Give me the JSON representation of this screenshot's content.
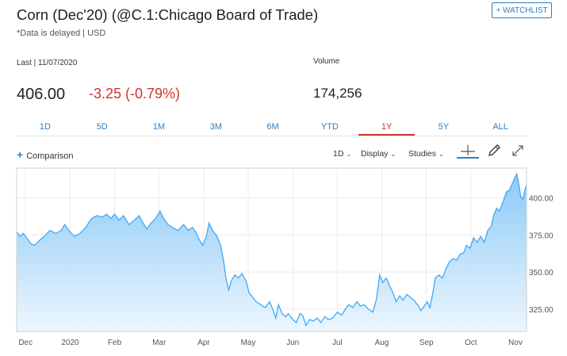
{
  "header": {
    "title": "Corn (Dec'20) (@C.1:Chicago Board of Trade)",
    "subtitle": "*Data is delayed | USD",
    "watchlist_label": "+ WATCHLIST"
  },
  "quote": {
    "last_label": "Last | 11/07/2020",
    "last_price": "406.00",
    "change": "-3.25 (-0.79%)",
    "volume_label": "Volume",
    "volume_value": "174,256",
    "change_color": "#d0342c"
  },
  "range_tabs": [
    {
      "label": "1D",
      "active": false
    },
    {
      "label": "5D",
      "active": false
    },
    {
      "label": "1M",
      "active": false
    },
    {
      "label": "3M",
      "active": false
    },
    {
      "label": "6M",
      "active": false
    },
    {
      "label": "YTD",
      "active": false
    },
    {
      "label": "1Y",
      "active": true
    },
    {
      "label": "5Y",
      "active": false
    },
    {
      "label": "ALL",
      "active": false
    }
  ],
  "toolbar": {
    "comparison_label": "Comparison",
    "interval_label": "1D",
    "display_label": "Display",
    "studies_label": "Studies",
    "crosshair_icon": "crosshair-icon",
    "draw_icon": "pencil-icon",
    "expand_icon": "expand-icon"
  },
  "colors": {
    "accent": "#2f7fc1",
    "line": "#3fa9f5",
    "area_top": "#80c4f7",
    "area_bottom": "#eaf5fe",
    "negative": "#d0342c"
  },
  "chart_data": {
    "type": "area",
    "x_ticks": [
      "Dec",
      "2020",
      "Feb",
      "Mar",
      "Apr",
      "May",
      "Jun",
      "Jul",
      "Aug",
      "Sep",
      "Oct",
      "Nov"
    ],
    "y_ticks": [
      325.0,
      350.0,
      375.0,
      400.0
    ],
    "y_tick_labels": [
      "325.00",
      "350.00",
      "375.00",
      "400.00"
    ],
    "ylim": [
      310,
      420
    ],
    "x_range_months": [
      -0.2,
      11.25
    ],
    "grid": true,
    "points": [
      [
        -0.2,
        377
      ],
      [
        -0.12,
        374
      ],
      [
        -0.05,
        376
      ],
      [
        0.05,
        372
      ],
      [
        0.12,
        369
      ],
      [
        0.2,
        368
      ],
      [
        0.3,
        371
      ],
      [
        0.42,
        374
      ],
      [
        0.55,
        378
      ],
      [
        0.68,
        376
      ],
      [
        0.8,
        378
      ],
      [
        0.88,
        382
      ],
      [
        1.0,
        377
      ],
      [
        1.1,
        374
      ],
      [
        1.22,
        376
      ],
      [
        1.35,
        380
      ],
      [
        1.48,
        386
      ],
      [
        1.6,
        388
      ],
      [
        1.72,
        387
      ],
      [
        1.82,
        389
      ],
      [
        1.92,
        386
      ],
      [
        2.0,
        389
      ],
      [
        2.1,
        385
      ],
      [
        2.2,
        388
      ],
      [
        2.32,
        382
      ],
      [
        2.45,
        385
      ],
      [
        2.55,
        388
      ],
      [
        2.62,
        384
      ],
      [
        2.72,
        379
      ],
      [
        2.82,
        383
      ],
      [
        2.92,
        386
      ],
      [
        3.02,
        391
      ],
      [
        3.1,
        386
      ],
      [
        3.2,
        382
      ],
      [
        3.3,
        380
      ],
      [
        3.42,
        378
      ],
      [
        3.55,
        382
      ],
      [
        3.65,
        378
      ],
      [
        3.75,
        380
      ],
      [
        3.82,
        377
      ],
      [
        3.9,
        372
      ],
      [
        3.98,
        368
      ],
      [
        4.06,
        374
      ],
      [
        4.12,
        383
      ],
      [
        4.2,
        378
      ],
      [
        4.3,
        374
      ],
      [
        4.38,
        368
      ],
      [
        4.45,
        357
      ],
      [
        4.5,
        346
      ],
      [
        4.56,
        338
      ],
      [
        4.62,
        344
      ],
      [
        4.7,
        348
      ],
      [
        4.78,
        346
      ],
      [
        4.86,
        349
      ],
      [
        4.95,
        344
      ],
      [
        5.02,
        336
      ],
      [
        5.1,
        333
      ],
      [
        5.18,
        330
      ],
      [
        5.28,
        328
      ],
      [
        5.38,
        326
      ],
      [
        5.48,
        330
      ],
      [
        5.55,
        325
      ],
      [
        5.62,
        319
      ],
      [
        5.68,
        328
      ],
      [
        5.76,
        322
      ],
      [
        5.84,
        320
      ],
      [
        5.9,
        322
      ],
      [
        6.0,
        318
      ],
      [
        6.08,
        316
      ],
      [
        6.16,
        322
      ],
      [
        6.22,
        321
      ],
      [
        6.3,
        314
      ],
      [
        6.38,
        318
      ],
      [
        6.46,
        317
      ],
      [
        6.55,
        319
      ],
      [
        6.63,
        316
      ],
      [
        6.72,
        320
      ],
      [
        6.8,
        318
      ],
      [
        6.9,
        319
      ],
      [
        7.0,
        323
      ],
      [
        7.1,
        321
      ],
      [
        7.18,
        325
      ],
      [
        7.26,
        328
      ],
      [
        7.35,
        326
      ],
      [
        7.44,
        330
      ],
      [
        7.52,
        327
      ],
      [
        7.6,
        328
      ],
      [
        7.7,
        325
      ],
      [
        7.8,
        323
      ],
      [
        7.88,
        332
      ],
      [
        7.95,
        348
      ],
      [
        8.02,
        343
      ],
      [
        8.1,
        346
      ],
      [
        8.17,
        341
      ],
      [
        8.25,
        336
      ],
      [
        8.32,
        330
      ],
      [
        8.4,
        334
      ],
      [
        8.48,
        331
      ],
      [
        8.56,
        335
      ],
      [
        8.64,
        333
      ],
      [
        8.72,
        331
      ],
      [
        8.8,
        328
      ],
      [
        8.88,
        324
      ],
      [
        8.95,
        327
      ],
      [
        9.02,
        330
      ],
      [
        9.08,
        326
      ],
      [
        9.14,
        335
      ],
      [
        9.2,
        346
      ],
      [
        9.28,
        348
      ],
      [
        9.36,
        346
      ],
      [
        9.44,
        352
      ],
      [
        9.52,
        357
      ],
      [
        9.6,
        359
      ],
      [
        9.68,
        358
      ],
      [
        9.76,
        362
      ],
      [
        9.84,
        363
      ],
      [
        9.9,
        368
      ],
      [
        9.98,
        366
      ],
      [
        10.06,
        373
      ],
      [
        10.14,
        370
      ],
      [
        10.22,
        374
      ],
      [
        10.3,
        370
      ],
      [
        10.38,
        378
      ],
      [
        10.46,
        381
      ],
      [
        10.52,
        389
      ],
      [
        10.58,
        393
      ],
      [
        10.64,
        391
      ],
      [
        10.72,
        397
      ],
      [
        10.8,
        404
      ],
      [
        10.86,
        405
      ],
      [
        10.92,
        409
      ],
      [
        10.98,
        413
      ],
      [
        11.03,
        416
      ],
      [
        11.07,
        410
      ],
      [
        11.12,
        401
      ],
      [
        11.17,
        399
      ],
      [
        11.21,
        405
      ],
      [
        11.25,
        409
      ]
    ]
  }
}
